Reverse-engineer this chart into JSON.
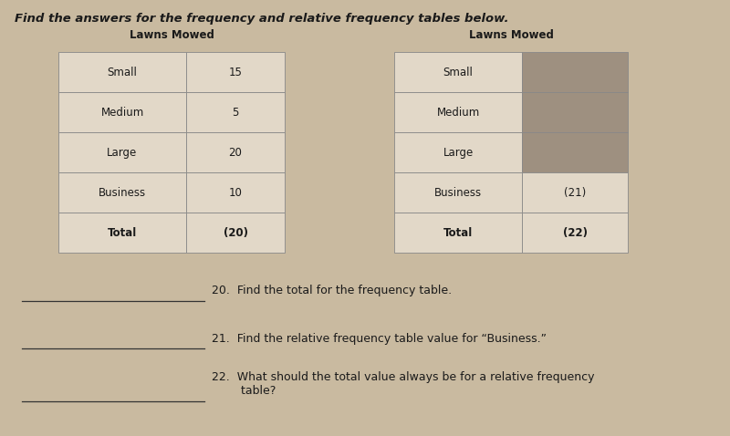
{
  "title": "Find the answers for the frequency and relative frequency tables below.",
  "title_fontsize": 9.5,
  "bg_color": "#c9baa0",
  "table1_header": "Lawns Mowed",
  "table1_rows": [
    [
      "Small",
      "15"
    ],
    [
      "Medium",
      "5"
    ],
    [
      "Large",
      "20"
    ],
    [
      "Business",
      "10"
    ],
    [
      "Total",
      "(20)"
    ]
  ],
  "table2_header": "Lawns Mowed",
  "table2_rows": [
    [
      "Small",
      ""
    ],
    [
      "Medium",
      ""
    ],
    [
      "Large",
      ""
    ],
    [
      "Business",
      "(21)"
    ],
    [
      "Total",
      "(22)"
    ]
  ],
  "table2_shaded_rows": [
    0,
    1,
    2
  ],
  "shade_color": "#9e9080",
  "cell_bg": "#e2d8c8",
  "border_color": "#888888",
  "questions": [
    "20.  Find the total for the frequency table.",
    "21.  Find the relative frequency table value for “Business.”",
    "22.  What should the total value always be for a relative frequency\n        table?"
  ],
  "question_fontsize": 9
}
